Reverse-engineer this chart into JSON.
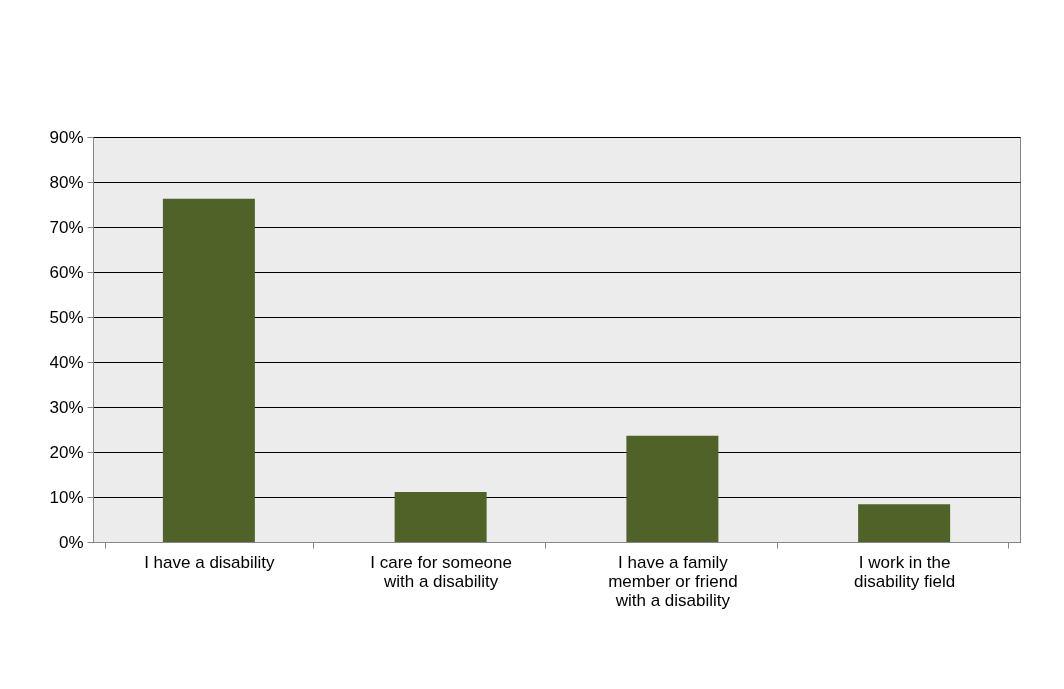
{
  "chart_data": {
    "type": "bar",
    "categories": [
      "I have a disability",
      "I care for someone with a disability",
      "I have a family member or friend with a disability",
      "I work in the disability field"
    ],
    "values": [
      76.3,
      11.1,
      23.6,
      8.4
    ],
    "color": "#4f6228",
    "ylim": [
      0,
      90
    ],
    "yticks": [
      {
        "value": 0,
        "label": "0%"
      },
      {
        "value": 10,
        "label": "10%"
      },
      {
        "value": 20,
        "label": "20%"
      },
      {
        "value": 30,
        "label": "30%"
      },
      {
        "value": 40,
        "label": "40%"
      },
      {
        "value": 50,
        "label": "50%"
      },
      {
        "value": 60,
        "label": "60%"
      },
      {
        "value": 70,
        "label": "70%"
      },
      {
        "value": 80,
        "label": "80%"
      },
      {
        "value": 90,
        "label": "90%"
      }
    ],
    "grid": "y"
  }
}
